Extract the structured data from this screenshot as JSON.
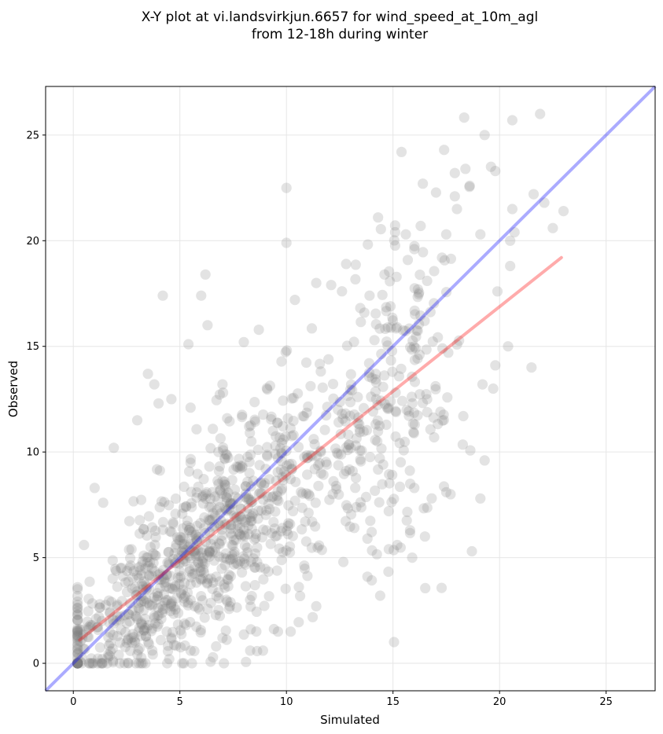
{
  "chart_data": {
    "type": "scatter",
    "title_line1": "X-Y plot at vi.landsvirkjun.6657 for wind_speed_at_10m_agl",
    "title_line2": "from 12-18h during winter",
    "xlabel": "Simulated",
    "ylabel": "Observed",
    "xlim": [
      -1.3,
      27.3
    ],
    "ylim": [
      -1.3,
      27.3
    ],
    "xticks": [
      0,
      5,
      10,
      15,
      20,
      25
    ],
    "yticks": [
      0,
      5,
      10,
      15,
      20,
      25
    ],
    "grid": true,
    "colors": {
      "points": "#808080",
      "identity_line": "#0000ff",
      "fit_line": "#ff0000"
    },
    "identity_line": {
      "x": [
        -1.3,
        27.3
      ],
      "y": [
        -1.3,
        27.3
      ]
    },
    "fit_line": {
      "x": [
        0.3,
        22.9
      ],
      "y": [
        1.1,
        19.2
      ]
    },
    "outlier_points": [
      [
        21.9,
        26.0
      ],
      [
        20.6,
        25.7
      ],
      [
        19.3,
        25.0
      ],
      [
        17.4,
        24.3
      ],
      [
        15.4,
        24.2
      ],
      [
        19.6,
        23.5
      ],
      [
        18.4,
        23.4
      ],
      [
        17.9,
        23.2
      ],
      [
        19.8,
        23.3
      ],
      [
        18.6,
        22.6
      ],
      [
        16.4,
        22.7
      ],
      [
        10.0,
        22.5
      ],
      [
        21.6,
        22.2
      ],
      [
        17.9,
        22.1
      ],
      [
        22.1,
        21.8
      ],
      [
        20.6,
        21.5
      ],
      [
        18.0,
        21.5
      ],
      [
        23.0,
        21.4
      ],
      [
        14.3,
        21.1
      ],
      [
        16.3,
        20.7
      ],
      [
        22.5,
        20.6
      ],
      [
        20.7,
        20.4
      ],
      [
        19.1,
        20.3
      ],
      [
        15.1,
        20.4
      ],
      [
        15.6,
        20.3
      ],
      [
        17.5,
        20.3
      ],
      [
        10.0,
        19.9
      ],
      [
        16.0,
        19.6
      ],
      [
        20.5,
        20.0
      ],
      [
        17.3,
        19.2
      ],
      [
        20.5,
        18.8
      ],
      [
        12.8,
        18.9
      ],
      [
        6.2,
        18.4
      ],
      [
        14.6,
        18.4
      ],
      [
        11.4,
        18.0
      ],
      [
        12.1,
        17.9
      ],
      [
        4.2,
        17.4
      ],
      [
        6.0,
        17.4
      ],
      [
        13.9,
        17.4
      ],
      [
        10.4,
        17.2
      ],
      [
        16.6,
        18.1
      ],
      [
        19.9,
        17.6
      ],
      [
        5.4,
        15.1
      ],
      [
        6.3,
        16.0
      ],
      [
        8.0,
        15.2
      ],
      [
        21.5,
        14.0
      ],
      [
        19.8,
        14.1
      ],
      [
        20.4,
        15.0
      ],
      [
        19.2,
        13.2
      ],
      [
        18.3,
        11.7
      ],
      [
        19.7,
        13.0
      ],
      [
        18.7,
        5.3
      ],
      [
        19.1,
        7.8
      ],
      [
        19.3,
        9.6
      ],
      [
        17.5,
        8.1
      ],
      [
        17.7,
        8.0
      ],
      [
        16.0,
        8.3
      ],
      [
        15.8,
        6.3
      ],
      [
        16.5,
        6.0
      ],
      [
        15.9,
        5.0
      ],
      [
        15.2,
        5.6
      ],
      [
        14.4,
        3.2
      ],
      [
        13.8,
        4.1
      ],
      [
        13.8,
        5.9
      ],
      [
        12.8,
        9.1
      ],
      [
        14.8,
        7.2
      ],
      [
        3.5,
        13.7
      ],
      [
        3.8,
        13.2
      ],
      [
        4.0,
        12.3
      ],
      [
        5.5,
        12.1
      ],
      [
        7.0,
        13.2
      ],
      [
        3.0,
        11.5
      ],
      [
        4.6,
        12.5
      ],
      [
        1.9,
        10.2
      ],
      [
        1.0,
        8.3
      ],
      [
        1.4,
        7.6
      ],
      [
        0.5,
        5.6
      ],
      [
        0.2,
        3.6
      ],
      [
        0.3,
        1.6
      ],
      [
        0.9,
        0.0
      ],
      [
        2.4,
        0.0
      ],
      [
        8.3,
        0.6
      ],
      [
        8.9,
        0.6
      ],
      [
        4.5,
        0.2
      ],
      [
        6.7,
        0.8
      ],
      [
        11.4,
        2.7
      ],
      [
        10.2,
        1.5
      ],
      [
        9.6,
        1.5
      ],
      [
        7.0,
        1.2
      ],
      [
        5.5,
        0.6
      ]
    ]
  }
}
